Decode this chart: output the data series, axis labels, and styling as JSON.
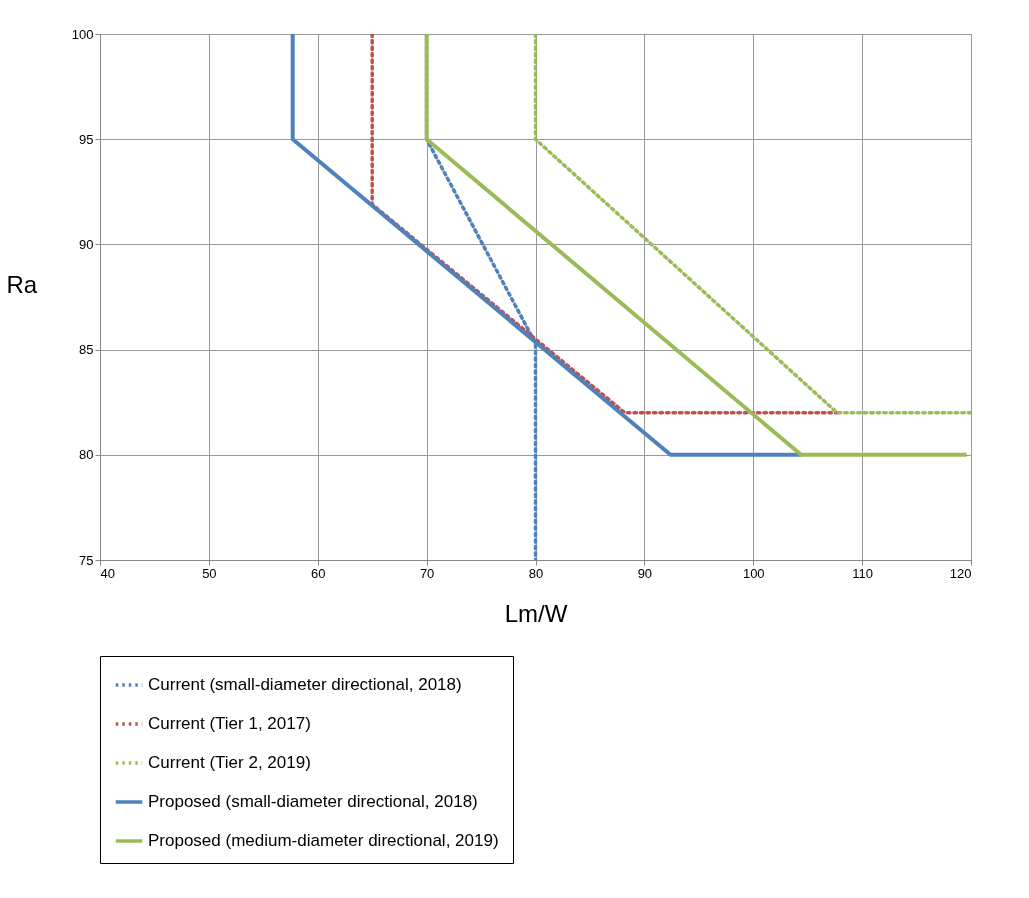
{
  "chart_data": {
    "type": "line",
    "xlabel": "Lm/W",
    "ylabel": "Ra",
    "xlim": [
      40,
      120
    ],
    "ylim": [
      75,
      100
    ],
    "xticks": [
      40,
      50,
      60,
      70,
      80,
      90,
      100,
      110,
      120
    ],
    "yticks": [
      75,
      80,
      85,
      90,
      95,
      100
    ],
    "grid": true,
    "legend": "bottom",
    "marker": "none",
    "series": [
      {
        "name": "Current (small-diameter directional, 2018)",
        "color": "#4f81bd",
        "line_style": "dotted",
        "x": [
          70,
          70,
          80,
          80
        ],
        "values": [
          100,
          95,
          85.3,
          75
        ]
      },
      {
        "name": "Current (Tier 1, 2017)",
        "color": "#c0504d",
        "line_style": "dotted",
        "x": [
          65,
          65,
          88.2,
          107.7
        ],
        "values": [
          100,
          91.9,
          82,
          82
        ]
      },
      {
        "name": "Current (Tier 2, 2019)",
        "color": "#9bbb59",
        "line_style": "dotted",
        "x": [
          80,
          80,
          107.7,
          120
        ],
        "values": [
          100,
          95,
          82,
          82
        ]
      },
      {
        "name": "Proposed (small-diameter directional, 2018)",
        "color": "#4f81bd",
        "line_style": "solid",
        "x": [
          57.7,
          57.7,
          92.4,
          104.4
        ],
        "values": [
          100,
          95,
          80,
          80
        ]
      },
      {
        "name": "Proposed (medium-diameter directional, 2019)",
        "color": "#9bbb59",
        "line_style": "solid",
        "x": [
          70,
          70,
          104.4,
          119.6
        ],
        "values": [
          100,
          95,
          80,
          80
        ]
      }
    ]
  }
}
